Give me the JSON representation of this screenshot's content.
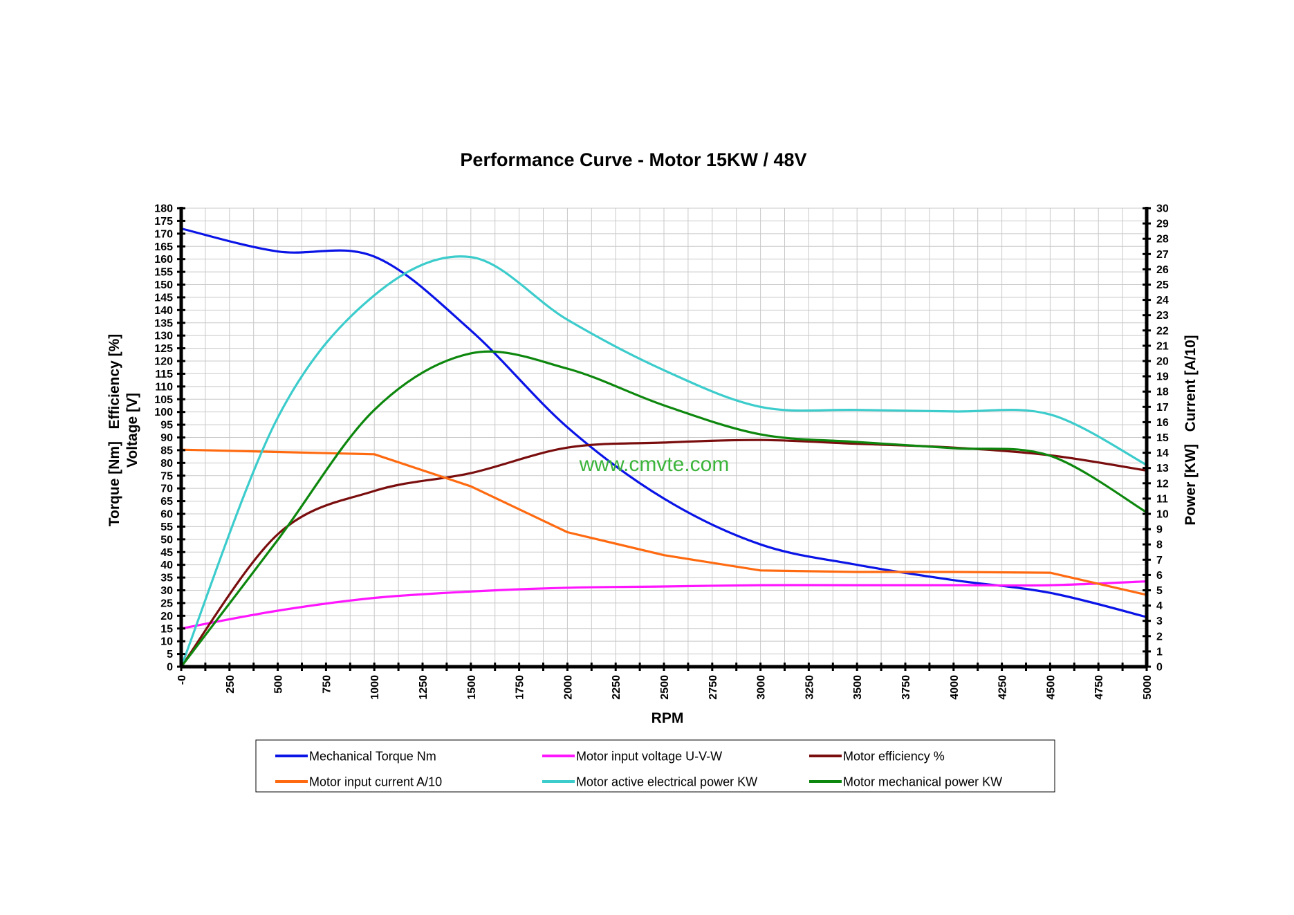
{
  "chart_data": {
    "type": "line",
    "title": "Performance Curve - Motor 15KW / 48V",
    "xlabel": "RPM",
    "ylabel_left_line1": "Torque [Nm]   Efficiency [%]",
    "ylabel_left_line2": "Voltage [V]",
    "ylabel_right": "Power [KW]   Current [A/10]",
    "watermark": "www.cmvte.com",
    "xlim": [
      0,
      5000
    ],
    "ylim_left": [
      0,
      180
    ],
    "ylim_right": [
      0,
      30
    ],
    "x_ticks": [
      "-0",
      "250",
      "500",
      "750",
      "1000",
      "1250",
      "1500",
      "1750",
      "2000",
      "2250",
      "2500",
      "2750",
      "3000",
      "3250",
      "3500",
      "3750",
      "4000",
      "4250",
      "4500",
      "4750",
      "5000"
    ],
    "y_left_ticks": [
      "0",
      "5",
      "10",
      "15",
      "20",
      "25",
      "30",
      "35",
      "40",
      "45",
      "50",
      "55",
      "60",
      "65",
      "70",
      "75",
      "80",
      "85",
      "90",
      "95",
      "100",
      "105",
      "110",
      "115",
      "120",
      "125",
      "130",
      "135",
      "140",
      "145",
      "150",
      "155",
      "160",
      "165",
      "170",
      "175",
      "180"
    ],
    "y_right_ticks": [
      "0",
      "1",
      "2",
      "3",
      "4",
      "5",
      "6",
      "7",
      "8",
      "9",
      "10",
      "11",
      "12",
      "13",
      "14",
      "15",
      "16",
      "17",
      "18",
      "19",
      "20",
      "21",
      "22",
      "23",
      "24",
      "25",
      "26",
      "27",
      "28",
      "29",
      "30"
    ],
    "series": [
      {
        "name": "Mechanical Torque   Nm",
        "color": "#0a14e6",
        "axis": "left",
        "x": [
          0,
          500,
          1000,
          1500,
          2000,
          2500,
          3000,
          3500,
          4000,
          4500,
          5000
        ],
        "values": [
          172,
          163,
          161,
          132,
          94,
          66,
          48,
          40,
          34,
          29,
          19.5
        ]
      },
      {
        "name": "Motor input voltage   U-V-W",
        "color": "#ff16ff",
        "axis": "left",
        "x": [
          0,
          500,
          1000,
          1500,
          2000,
          2500,
          3000,
          3500,
          4000,
          4500,
          5000
        ],
        "values": [
          15,
          22,
          27,
          29.5,
          31,
          31.5,
          32,
          32,
          32,
          32,
          33.5
        ]
      },
      {
        "name": "Motor efficiency   %",
        "color": "#7a0e0e",
        "axis": "left",
        "x": [
          0,
          500,
          1000,
          1500,
          2000,
          2500,
          3000,
          3500,
          4000,
          4500,
          5000
        ],
        "values": [
          0,
          52,
          69,
          76,
          86,
          88,
          89,
          87.5,
          86,
          83,
          77
        ]
      },
      {
        "name": "Motor input current A/10",
        "color": "#ff6a10",
        "axis": "right",
        "x": [
          0,
          1000,
          1500,
          2000,
          2500,
          3000,
          3500,
          4000,
          4500,
          5000
        ],
        "values": [
          14.2,
          13.9,
          11.8,
          8.8,
          7.3,
          6.3,
          6.2,
          6.2,
          6.15,
          4.7
        ]
      },
      {
        "name": "Motor  active electrical power KW",
        "color": "#3ccccc",
        "axis": "right",
        "x": [
          0,
          500,
          1000,
          1500,
          2000,
          2500,
          3000,
          3500,
          4000,
          4500,
          5000
        ],
        "values": [
          0,
          16.3,
          24.3,
          26.8,
          22.7,
          19.4,
          17,
          16.8,
          16.7,
          16.5,
          13.2
        ]
      },
      {
        "name": "Motor mechanical power KW",
        "color": "#0d870d",
        "axis": "right",
        "x": [
          0,
          500,
          1000,
          1500,
          2000,
          2500,
          3000,
          3500,
          4000,
          4500,
          5000
        ],
        "values": [
          0,
          8.3,
          16.8,
          20.5,
          19.5,
          17.1,
          15.2,
          14.7,
          14.3,
          13.8,
          10.1
        ]
      }
    ]
  }
}
